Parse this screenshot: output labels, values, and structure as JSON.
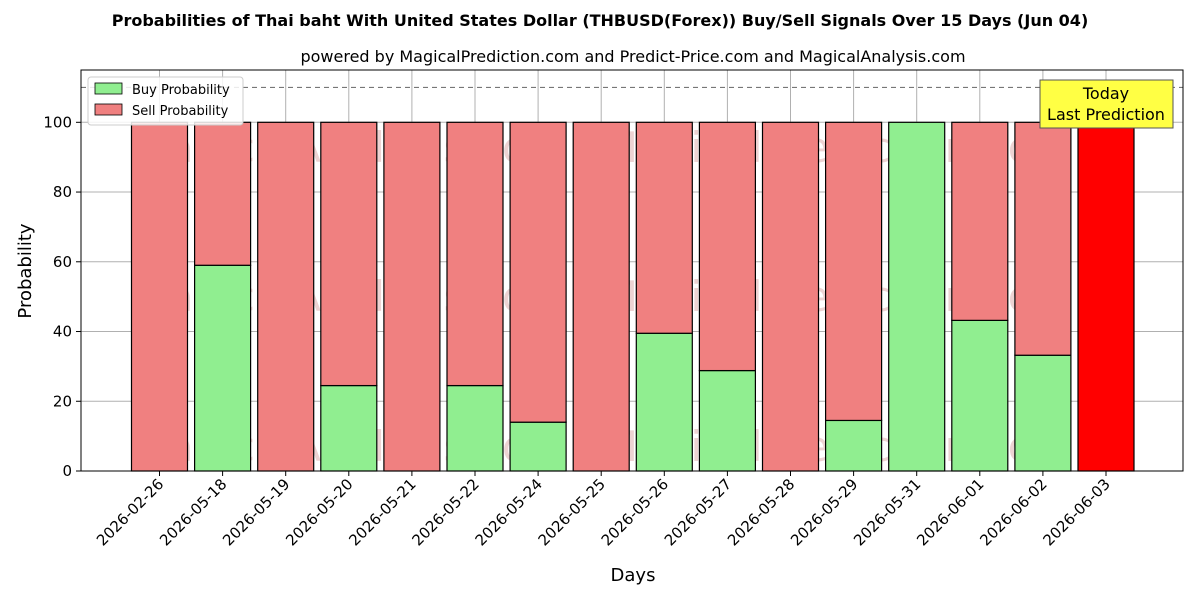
{
  "colors": {
    "buy": "#90ee90",
    "sell": "#f08080",
    "today": "#ff0000",
    "callout_bg": "#ffff44"
  },
  "watermarks": [
    "MagicalAnalysis.com",
    "MagicalPrediction.com",
    "MagicalAnalysis.com",
    "MagicalPrediction.com",
    "MagicalAnalysis.com",
    "MagicalPrediction.com"
  ],
  "callout": {
    "line1": "Today",
    "line2": "Last Prediction"
  },
  "chart_data": {
    "type": "bar",
    "stacked": true,
    "title": "Probabilities of Thai baht With United States Dollar (THBUSD(Forex)) Buy/Sell Signals Over 15 Days (Jun 04)",
    "subtitle": "powered by MagicalPrediction.com and Predict-Price.com and MagicalAnalysis.com",
    "xlabel": "Days",
    "ylabel": "Probability",
    "ylim": [
      0,
      115
    ],
    "yticks": [
      0,
      20,
      40,
      60,
      80,
      100
    ],
    "reference_line": 110,
    "grid": true,
    "legend_position": "top-left",
    "categories": [
      "2026-02-26",
      "2026-05-18",
      "2026-05-19",
      "2026-05-20",
      "2026-05-21",
      "2026-05-22",
      "2026-05-24",
      "2026-05-25",
      "2026-05-26",
      "2026-05-27",
      "2026-05-28",
      "2026-05-29",
      "2026-05-31",
      "2026-06-01",
      "2026-06-02",
      "2026-06-03"
    ],
    "series": [
      {
        "name": "Buy Probability",
        "values": [
          0,
          59,
          0,
          24.5,
          0,
          24.5,
          14,
          0,
          39.5,
          28.8,
          0,
          14.5,
          100,
          43.2,
          33.2,
          0
        ]
      },
      {
        "name": "Sell Probability",
        "values": [
          100,
          41,
          100,
          75.5,
          100,
          75.5,
          86,
          100,
          60.5,
          71.2,
          100,
          85.5,
          0,
          56.8,
          66.8,
          100
        ]
      }
    ],
    "highlight_category": "2026-06-03"
  }
}
